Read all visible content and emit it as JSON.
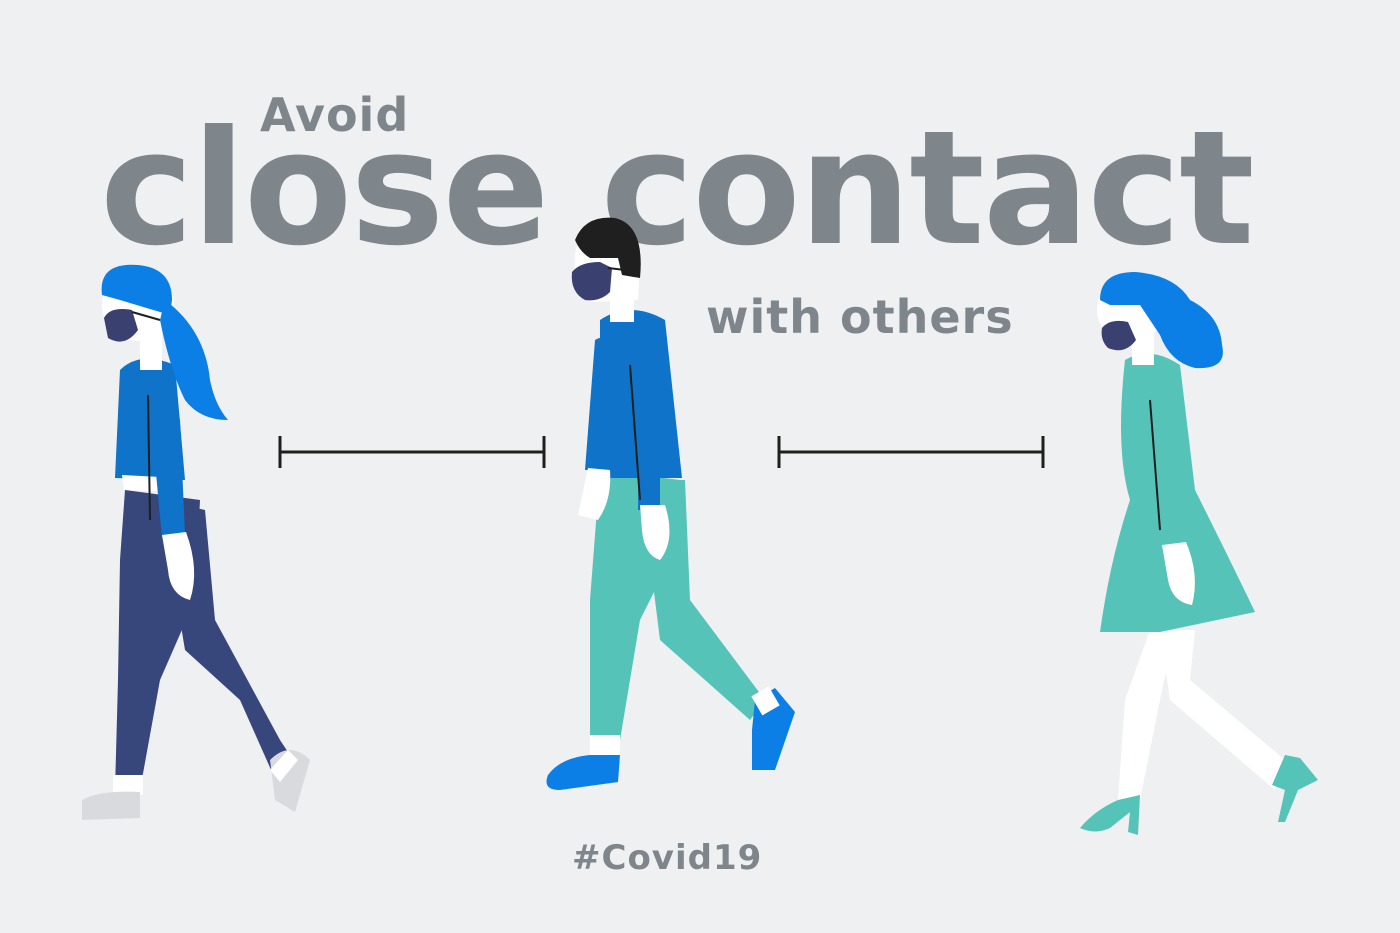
{
  "poster": {
    "line1": "Avoid",
    "line2": "close contact",
    "line3": "with others",
    "hashtag": "#Covid19"
  },
  "colors": {
    "background": "#eff0f2",
    "text": "#7e858b",
    "blue": "#0f73c9",
    "bright_blue": "#0b7fe6",
    "teal": "#56c3b9",
    "navy": "#37477c",
    "mask": "#3a4170",
    "skin": "#ffffff",
    "ink": "#1f1f1f"
  }
}
